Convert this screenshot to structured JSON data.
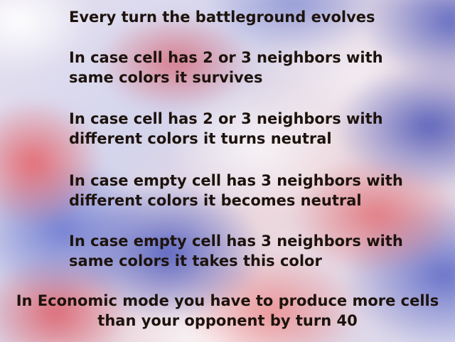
{
  "rules": [
    "Every turn the battleground evolves",
    "In case cell has 2 or 3 neighbors with\nsame colors it survives",
    "In case cell has 2 or 3 neighbors with\ndifferent colors it turns neutral",
    "In case empty cell has 3 neighbors with\ndifferent colors it becomes neutral",
    "In case empty cell has 3 neighbors with\nsame colors it takes this color"
  ],
  "footer": "In Economic mode you have to produce more cells\nthan your opponent by turn 40",
  "colors": {
    "text": "#1d130d",
    "team_red": "#e05a5f",
    "team_blue": "#4e5cbe",
    "neutral": "#ffffff"
  }
}
